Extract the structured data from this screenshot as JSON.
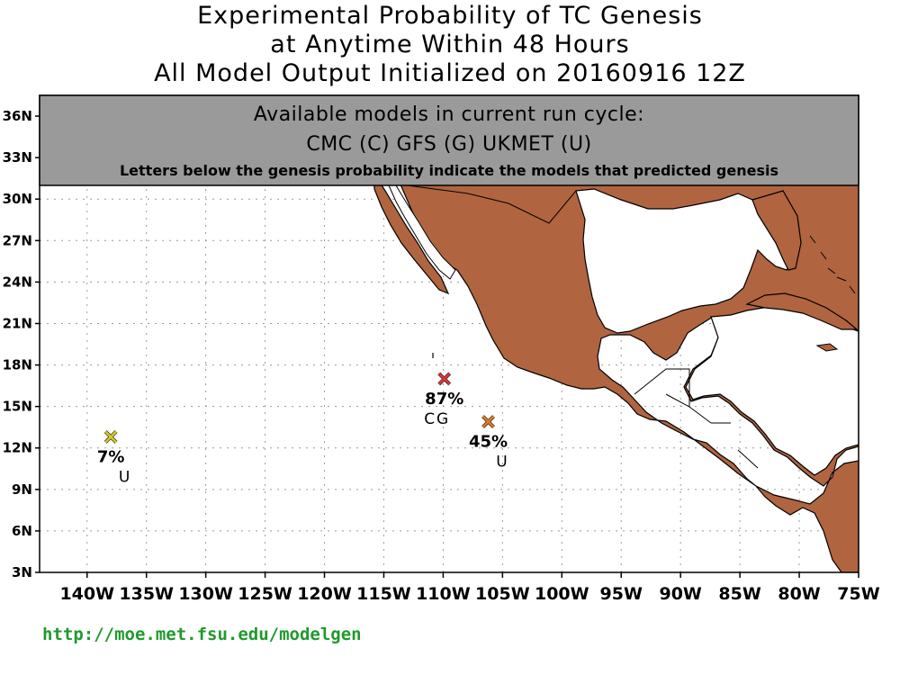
{
  "title": {
    "line1": "Experimental Probability of TC Genesis",
    "line2": "at Anytime Within 48 Hours",
    "line3": "All Model Output Initialized on 20160916 12Z"
  },
  "panel": {
    "line1": "Available models in current run cycle:",
    "line2": "CMC (C) GFS (G)  UKMET (U)",
    "line3": "Letters below the genesis probability indicate the models that predicted genesis"
  },
  "map": {
    "lat_labels": [
      "36N",
      "33N",
      "30N",
      "27N",
      "24N",
      "21N",
      "18N",
      "15N",
      "12N",
      "9N",
      "6N",
      "3N"
    ],
    "lat_values": [
      36,
      33,
      30,
      27,
      24,
      21,
      18,
      15,
      12,
      9,
      6,
      3
    ],
    "lon_labels": [
      "140W",
      "135W",
      "130W",
      "125W",
      "120W",
      "115W",
      "110W",
      "105W",
      "100W",
      "95W",
      "90W",
      "85W",
      "80W",
      "75W"
    ],
    "lon_values": [
      -140,
      -135,
      -130,
      -125,
      -120,
      -115,
      -110,
      -105,
      -100,
      -95,
      -90,
      -85,
      -80,
      -75
    ],
    "extent": {
      "lon_min": -144,
      "lon_max": -75,
      "lat_min": 3,
      "lat_max": 37.5
    },
    "land_color": "#b06440",
    "panel_color": "#9a9a9a"
  },
  "storms": [
    {
      "lat": 12.8,
      "lon": -138.0,
      "probability": "7%",
      "models": "U",
      "color": "#d8cc20"
    },
    {
      "lat": 17.0,
      "lon": -109.9,
      "probability": "87%",
      "models": "CG",
      "color": "#e83030"
    },
    {
      "lat": 13.9,
      "lon": -106.2,
      "probability": "45%",
      "models": "U",
      "color": "#e87a20"
    }
  ],
  "footer": {
    "url": "http://moe.met.fsu.edu/modelgen"
  }
}
